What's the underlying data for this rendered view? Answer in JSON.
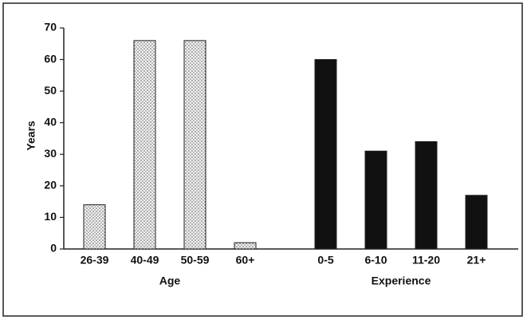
{
  "chart_data": {
    "type": "bar",
    "ylabel": "Years",
    "ylim": [
      0,
      70
    ],
    "yticks": [
      0,
      10,
      20,
      30,
      40,
      50,
      60,
      70
    ],
    "groups": [
      {
        "name": "Age",
        "categories": [
          "26-39",
          "40-49",
          "50-59",
          "60+"
        ],
        "values": [
          14,
          66,
          66,
          2
        ],
        "color": "#e8e8e8",
        "pattern": "dotted"
      },
      {
        "name": "Experience",
        "categories": [
          "0-5",
          "6-10",
          "11-20",
          "21+"
        ],
        "values": [
          60,
          31,
          34,
          17
        ],
        "color": "#111111",
        "pattern": "solid"
      }
    ]
  }
}
